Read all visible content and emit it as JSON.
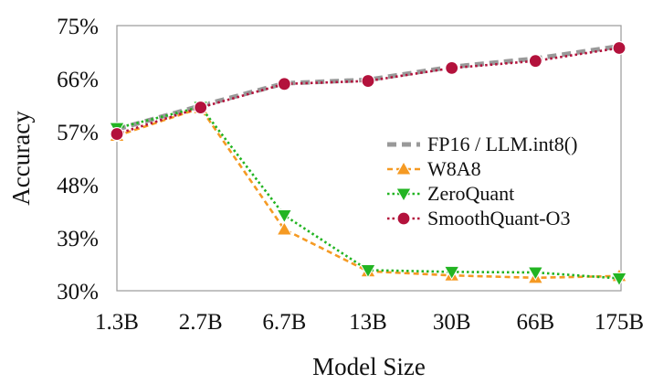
{
  "chart_data": {
    "type": "line",
    "title": "",
    "xlabel": "Model Size",
    "ylabel": "Accuracy",
    "categories": [
      "1.3B",
      "2.7B",
      "6.7B",
      "13B",
      "30B",
      "66B",
      "175B"
    ],
    "y_ticks": [
      "30%",
      "39%",
      "48%",
      "57%",
      "66%",
      "75%"
    ],
    "ylim": [
      30,
      75
    ],
    "grid": false,
    "legend_position": "center-right",
    "series": [
      {
        "name": "FP16 / LLM.int8()",
        "color": "#999999",
        "style": "dashed-thick",
        "marker": "none",
        "values": [
          57.4,
          61.4,
          65.2,
          65.8,
          68.0,
          69.4,
          71.5
        ]
      },
      {
        "name": "W8A8",
        "color": "#f59a23",
        "style": "dashed",
        "marker": "triangle-up",
        "values": [
          56.3,
          61.0,
          40.4,
          33.3,
          32.6,
          32.2,
          32.5
        ]
      },
      {
        "name": "ZeroQuant",
        "color": "#22b422",
        "style": "dotted",
        "marker": "triangle-down",
        "values": [
          57.6,
          61.2,
          42.8,
          33.5,
          33.2,
          33.1,
          32.1
        ]
      },
      {
        "name": "SmoothQuant-O3",
        "color": "#b3123c",
        "style": "dotted",
        "marker": "circle",
        "values": [
          56.6,
          61.1,
          65.1,
          65.6,
          67.8,
          69.0,
          71.2
        ]
      }
    ]
  }
}
